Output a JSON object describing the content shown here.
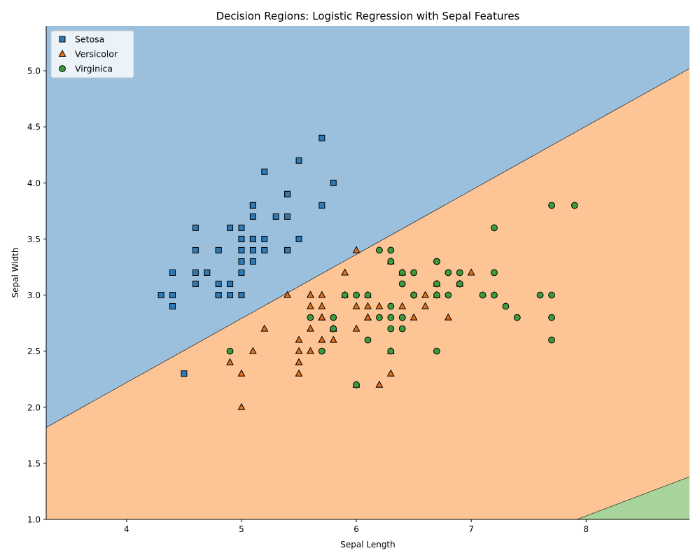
{
  "chart_data": {
    "type": "scatter",
    "title": "Decision Regions: Logistic Regression with Sepal Features",
    "xlabel": "Sepal Length",
    "ylabel": "Sepal Width",
    "xlim": [
      3.3,
      8.9
    ],
    "ylim": [
      1.0,
      5.4
    ],
    "xticks": [
      4,
      5,
      6,
      7,
      8
    ],
    "xtick_labels": [
      "4",
      "5",
      "6",
      "7",
      "8"
    ],
    "yticks": [
      1.0,
      1.5,
      2.0,
      2.5,
      3.0,
      3.5,
      4.0,
      4.5,
      5.0
    ],
    "ytick_labels": [
      "1.0",
      "1.5",
      "2.0",
      "2.5",
      "3.0",
      "3.5",
      "4.0",
      "4.5",
      "5.0"
    ],
    "grid": false,
    "legend_position": "top-left",
    "decision_regions": [
      {
        "class": "Setosa",
        "color": "#9bc0de",
        "boundary_below": {
          "x": [
            3.3,
            8.9
          ],
          "y": [
            1.82,
            5.02
          ]
        }
      },
      {
        "class": "Versicolor",
        "color": "#fdc595",
        "boundary_above": {
          "x": [
            3.3,
            8.9
          ],
          "y": [
            1.82,
            5.02
          ]
        },
        "boundary_below": {
          "x": [
            7.92,
            8.9
          ],
          "y": [
            1.0,
            1.38
          ]
        }
      },
      {
        "class": "Virginica",
        "color": "#a6d49b",
        "boundary_above": {
          "x": [
            7.92,
            8.9
          ],
          "y": [
            1.0,
            1.38
          ]
        }
      }
    ],
    "series": [
      {
        "name": "Setosa",
        "marker": "square",
        "color": "#2e7ab5",
        "points": [
          [
            5.1,
            3.5
          ],
          [
            4.9,
            3.0
          ],
          [
            4.7,
            3.2
          ],
          [
            4.6,
            3.1
          ],
          [
            5.0,
            3.6
          ],
          [
            5.4,
            3.9
          ],
          [
            4.6,
            3.4
          ],
          [
            5.0,
            3.4
          ],
          [
            4.4,
            2.9
          ],
          [
            4.9,
            3.1
          ],
          [
            5.4,
            3.7
          ],
          [
            4.8,
            3.4
          ],
          [
            4.8,
            3.0
          ],
          [
            4.3,
            3.0
          ],
          [
            5.8,
            4.0
          ],
          [
            5.7,
            4.4
          ],
          [
            5.4,
            3.9
          ],
          [
            5.1,
            3.5
          ],
          [
            5.7,
            3.8
          ],
          [
            5.1,
            3.8
          ],
          [
            5.4,
            3.4
          ],
          [
            5.1,
            3.7
          ],
          [
            4.6,
            3.6
          ],
          [
            5.1,
            3.3
          ],
          [
            4.8,
            3.4
          ],
          [
            5.0,
            3.0
          ],
          [
            5.0,
            3.4
          ],
          [
            5.2,
            3.5
          ],
          [
            5.2,
            3.4
          ],
          [
            4.7,
            3.2
          ],
          [
            4.8,
            3.1
          ],
          [
            5.4,
            3.4
          ],
          [
            5.2,
            4.1
          ],
          [
            5.5,
            4.2
          ],
          [
            4.9,
            3.1
          ],
          [
            5.0,
            3.2
          ],
          [
            5.5,
            3.5
          ],
          [
            4.9,
            3.6
          ],
          [
            4.4,
            3.0
          ],
          [
            5.1,
            3.4
          ],
          [
            5.0,
            3.5
          ],
          [
            4.5,
            2.3
          ],
          [
            4.4,
            3.2
          ],
          [
            5.0,
            3.5
          ],
          [
            5.1,
            3.8
          ],
          [
            4.8,
            3.0
          ],
          [
            5.1,
            3.8
          ],
          [
            4.6,
            3.2
          ],
          [
            5.3,
            3.7
          ],
          [
            5.0,
            3.3
          ]
        ]
      },
      {
        "name": "Versicolor",
        "marker": "triangle",
        "color": "#e3711c",
        "points": [
          [
            7.0,
            3.2
          ],
          [
            6.4,
            3.2
          ],
          [
            6.9,
            3.1
          ],
          [
            5.5,
            2.3
          ],
          [
            6.5,
            2.8
          ],
          [
            5.7,
            2.8
          ],
          [
            6.3,
            3.3
          ],
          [
            4.9,
            2.4
          ],
          [
            6.6,
            2.9
          ],
          [
            5.2,
            2.7
          ],
          [
            5.0,
            2.0
          ],
          [
            5.9,
            3.0
          ],
          [
            6.0,
            2.2
          ],
          [
            6.1,
            2.9
          ],
          [
            5.6,
            2.9
          ],
          [
            6.7,
            3.1
          ],
          [
            5.6,
            3.0
          ],
          [
            5.8,
            2.7
          ],
          [
            6.2,
            2.2
          ],
          [
            5.6,
            2.5
          ],
          [
            5.9,
            3.2
          ],
          [
            6.1,
            2.8
          ],
          [
            6.3,
            2.5
          ],
          [
            6.1,
            2.8
          ],
          [
            6.4,
            2.9
          ],
          [
            6.6,
            3.0
          ],
          [
            6.8,
            2.8
          ],
          [
            6.7,
            3.0
          ],
          [
            6.0,
            2.9
          ],
          [
            5.7,
            2.6
          ],
          [
            5.5,
            2.4
          ],
          [
            5.5,
            2.4
          ],
          [
            5.8,
            2.7
          ],
          [
            6.0,
            2.7
          ],
          [
            5.4,
            3.0
          ],
          [
            6.0,
            3.4
          ],
          [
            6.7,
            3.1
          ],
          [
            6.3,
            2.3
          ],
          [
            5.6,
            3.0
          ],
          [
            5.5,
            2.5
          ],
          [
            5.5,
            2.6
          ],
          [
            6.1,
            3.0
          ],
          [
            5.8,
            2.6
          ],
          [
            5.0,
            2.3
          ],
          [
            5.6,
            2.7
          ],
          [
            5.7,
            3.0
          ],
          [
            5.7,
            2.9
          ],
          [
            6.2,
            2.9
          ],
          [
            5.1,
            2.5
          ],
          [
            5.7,
            2.8
          ]
        ]
      },
      {
        "name": "Virginica",
        "marker": "circle",
        "color": "#3d9b3d",
        "points": [
          [
            6.3,
            3.3
          ],
          [
            5.8,
            2.7
          ],
          [
            7.1,
            3.0
          ],
          [
            6.3,
            2.9
          ],
          [
            6.5,
            3.0
          ],
          [
            7.6,
            3.0
          ],
          [
            4.9,
            2.5
          ],
          [
            7.3,
            2.9
          ],
          [
            6.7,
            2.5
          ],
          [
            7.2,
            3.6
          ],
          [
            6.5,
            3.2
          ],
          [
            6.4,
            2.7
          ],
          [
            6.8,
            3.0
          ],
          [
            5.7,
            2.5
          ],
          [
            5.8,
            2.8
          ],
          [
            6.4,
            3.2
          ],
          [
            6.5,
            3.0
          ],
          [
            7.7,
            3.8
          ],
          [
            7.7,
            2.6
          ],
          [
            6.0,
            2.2
          ],
          [
            6.9,
            3.2
          ],
          [
            5.6,
            2.8
          ],
          [
            7.7,
            2.8
          ],
          [
            6.3,
            2.7
          ],
          [
            6.7,
            3.3
          ],
          [
            7.2,
            3.2
          ],
          [
            6.2,
            2.8
          ],
          [
            6.1,
            3.0
          ],
          [
            6.4,
            2.8
          ],
          [
            7.2,
            3.0
          ],
          [
            7.4,
            2.8
          ],
          [
            7.9,
            3.8
          ],
          [
            6.4,
            2.8
          ],
          [
            6.3,
            2.8
          ],
          [
            6.1,
            2.6
          ],
          [
            7.7,
            3.0
          ],
          [
            6.3,
            3.4
          ],
          [
            6.4,
            3.1
          ],
          [
            6.0,
            3.0
          ],
          [
            6.9,
            3.1
          ],
          [
            6.7,
            3.1
          ],
          [
            6.9,
            3.1
          ],
          [
            5.8,
            2.7
          ],
          [
            6.8,
            3.2
          ],
          [
            6.7,
            3.3
          ],
          [
            6.7,
            3.0
          ],
          [
            6.3,
            2.5
          ],
          [
            6.5,
            3.0
          ],
          [
            6.2,
            3.4
          ],
          [
            5.9,
            3.0
          ]
        ]
      }
    ]
  }
}
